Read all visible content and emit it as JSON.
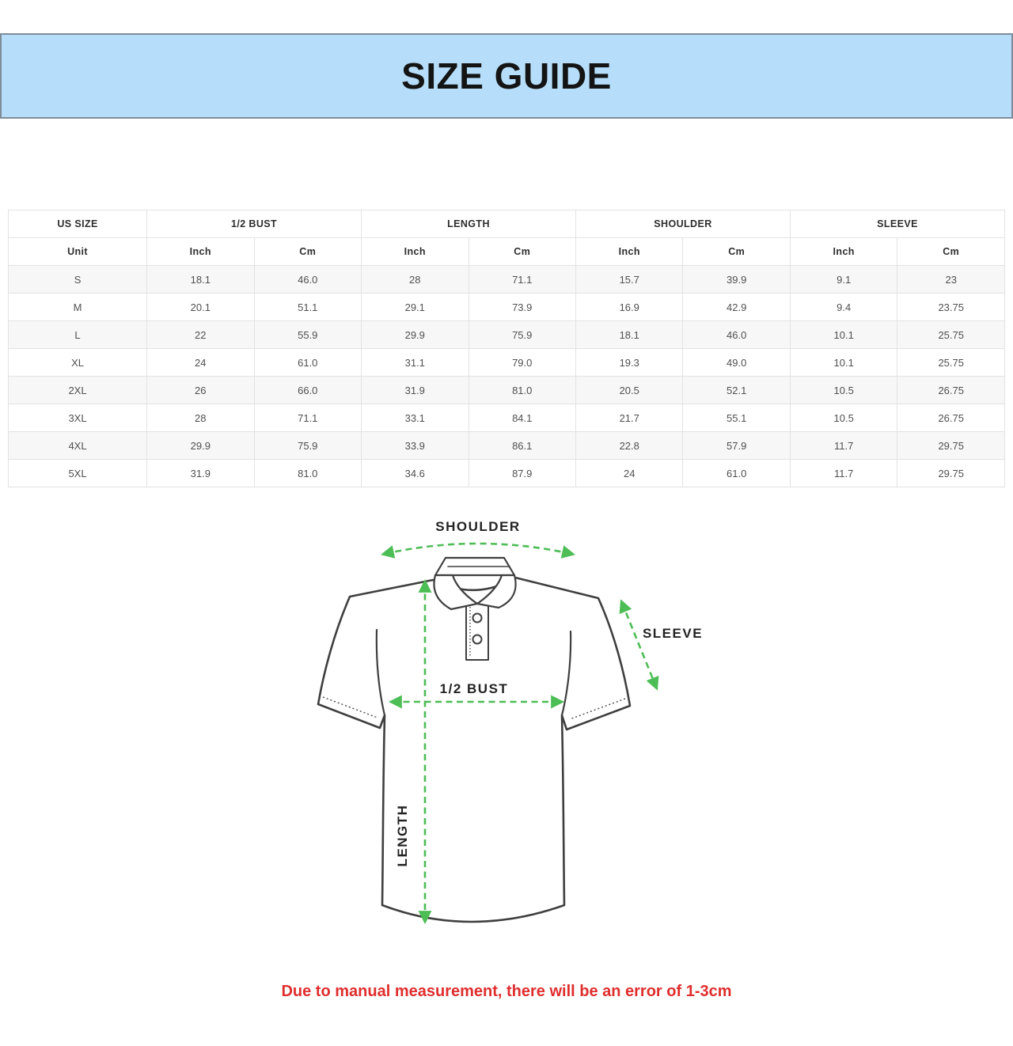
{
  "banner": {
    "title": "SIZE GUIDE",
    "bg_color": "#b6defa",
    "border_color": "#7f8c98",
    "text_color": "#141414"
  },
  "size_table": {
    "group_headers": [
      {
        "label": "US SIZE",
        "span": 1
      },
      {
        "label": "1/2 BUST",
        "span": 2
      },
      {
        "label": "LENGTH",
        "span": 2
      },
      {
        "label": "SHOULDER",
        "span": 2
      },
      {
        "label": "SLEEVE",
        "span": 2
      }
    ],
    "unit_row": [
      "Unit",
      "Inch",
      "Cm",
      "Inch",
      "Cm",
      "Inch",
      "Cm",
      "Inch",
      "Cm"
    ],
    "rows": [
      [
        "S",
        "18.1",
        "46.0",
        "28",
        "71.1",
        "15.7",
        "39.9",
        "9.1",
        "23"
      ],
      [
        "M",
        "20.1",
        "51.1",
        "29.1",
        "73.9",
        "16.9",
        "42.9",
        "9.4",
        "23.75"
      ],
      [
        "L",
        "22",
        "55.9",
        "29.9",
        "75.9",
        "18.1",
        "46.0",
        "10.1",
        "25.75"
      ],
      [
        "XL",
        "24",
        "61.0",
        "31.1",
        "79.0",
        "19.3",
        "49.0",
        "10.1",
        "25.75"
      ],
      [
        "2XL",
        "26",
        "66.0",
        "31.9",
        "81.0",
        "20.5",
        "52.1",
        "10.5",
        "26.75"
      ],
      [
        "3XL",
        "28",
        "71.1",
        "33.1",
        "84.1",
        "21.7",
        "55.1",
        "10.5",
        "26.75"
      ],
      [
        "4XL",
        "29.9",
        "75.9",
        "33.9",
        "86.1",
        "22.8",
        "57.9",
        "11.7",
        "29.75"
      ],
      [
        "5XL",
        "31.9",
        "81.0",
        "34.6",
        "87.9",
        "24",
        "61.0",
        "11.7",
        "29.75"
      ]
    ],
    "stripe_color": "#f7f7f7",
    "border_color": "#e3e3e3"
  },
  "diagram": {
    "labels": {
      "shoulder": "SHOULDER",
      "sleeve": "SLEEVE",
      "bust": "1/2 BUST",
      "length": "LENGTH"
    },
    "arrow_color": "#4dbd55",
    "outline_color": "#3f3f3f"
  },
  "note": {
    "text": "Due to manual measurement, there will be an error of 1-3cm",
    "color": "#e02d2d"
  }
}
